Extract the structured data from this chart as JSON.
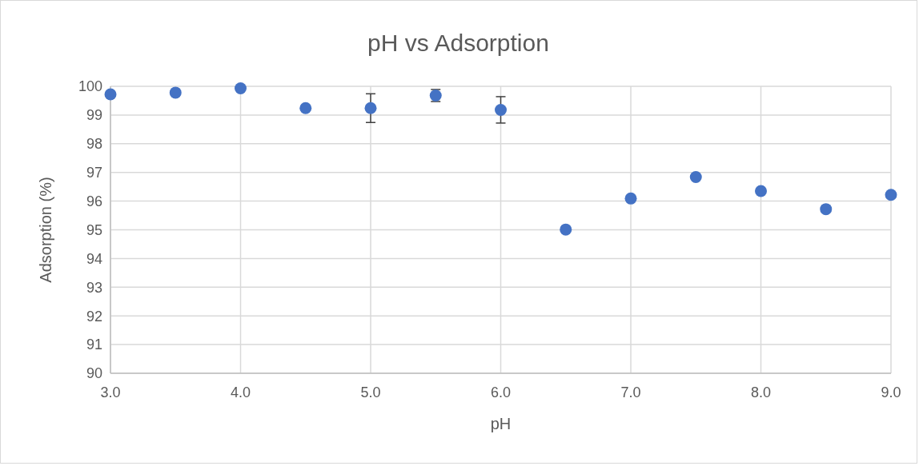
{
  "chart_data": {
    "type": "scatter",
    "title": "pH vs Adsorption",
    "xlabel": "pH",
    "ylabel": "Adsorption (%)",
    "x": [
      3.0,
      3.5,
      4.0,
      4.5,
      5.0,
      5.5,
      6.0,
      6.5,
      7.0,
      7.5,
      8.0,
      8.5,
      9.0
    ],
    "series": [
      {
        "color": "#4472c4",
        "values": [
          99.72,
          99.78,
          99.93,
          99.24,
          99.24,
          99.68,
          99.18,
          95.01,
          96.09,
          96.84,
          96.35,
          95.72,
          96.22
        ],
        "errors": [
          null,
          null,
          null,
          null,
          0.5,
          0.21,
          0.46,
          null,
          null,
          null,
          null,
          null,
          null
        ]
      }
    ],
    "xlim": [
      3,
      9
    ],
    "xticks": [
      {
        "value": 3,
        "label": "3.0"
      },
      {
        "value": 4,
        "label": "4.0"
      },
      {
        "value": 5,
        "label": "5.0"
      },
      {
        "value": 6,
        "label": "6.0"
      },
      {
        "value": 7,
        "label": "7.0"
      },
      {
        "value": 8,
        "label": "8.0"
      },
      {
        "value": 9,
        "label": "9.0"
      }
    ],
    "ylim": [
      90,
      100
    ],
    "yticks": [
      90,
      91,
      92,
      93,
      94,
      95,
      96,
      97,
      98,
      99,
      100
    ],
    "grid": true,
    "marker": "circle"
  }
}
